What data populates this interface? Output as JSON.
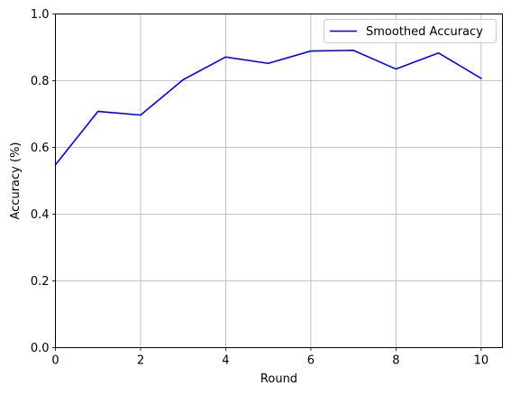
{
  "chart_data": {
    "type": "line",
    "title": "",
    "xlabel": "Round",
    "ylabel": "Accuracy (%)",
    "xlim": [
      0,
      10.5
    ],
    "ylim": [
      0,
      1.0
    ],
    "xticks": [
      0,
      2,
      4,
      6,
      8,
      10
    ],
    "yticks": [
      0.0,
      0.2,
      0.4,
      0.6,
      0.8,
      1.0
    ],
    "xtick_labels": [
      "0",
      "2",
      "4",
      "6",
      "8",
      "10"
    ],
    "ytick_labels": [
      "0.0",
      "0.2",
      "0.4",
      "0.6",
      "0.8",
      "1.0"
    ],
    "grid": true,
    "legend_position": "top-right",
    "series": [
      {
        "name": "Smoothed Accuracy",
        "color": "#0000ff",
        "x": [
          0,
          1,
          2,
          3,
          4,
          5,
          6,
          7,
          8,
          9,
          10
        ],
        "y": [
          0.548,
          0.708,
          0.697,
          0.803,
          0.871,
          0.852,
          0.889,
          0.891,
          0.835,
          0.883,
          0.807
        ]
      }
    ]
  }
}
